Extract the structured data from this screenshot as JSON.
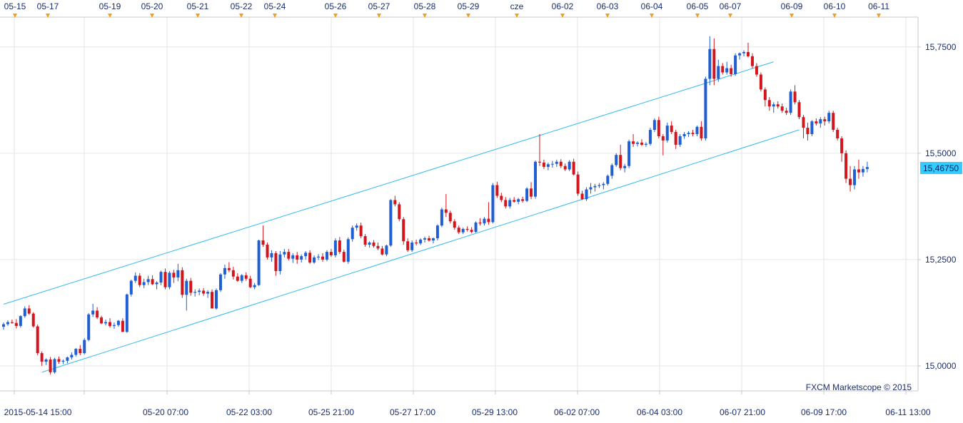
{
  "chart_data": {
    "type": "candlestick",
    "watermark": "FXCM Marketscope © 2015",
    "current_price": "15,46750",
    "top_date_labels": [
      "05-15",
      "05-17",
      "05-19",
      "05-20",
      "05-21",
      "05-22",
      "05-24",
      "05-26",
      "05-27",
      "05-28",
      "05-29",
      "cze",
      "06-02",
      "06-03",
      "06-04",
      "06-05",
      "06-07",
      "06-09",
      "06-10",
      "06-11"
    ],
    "bottom_time_labels": [
      "2015-05-14 15:00",
      "05-20 07:00",
      "05-22 03:00",
      "05-25 21:00",
      "05-27 17:00",
      "05-29 13:00",
      "06-02 07:00",
      "06-04 03:00",
      "06-07 21:00",
      "06-09 17:00",
      "06-11 13:00"
    ],
    "y_ticks": [
      "15,7500",
      "15,5000",
      "15,2500",
      "15,0000"
    ],
    "y_tick_values": [
      15.75,
      15.5,
      15.25,
      15.0
    ],
    "ylim": [
      14.963,
      15.81
    ],
    "colors": {
      "up": "#1f5fd1",
      "down": "#d2161e",
      "channel": "#33bbee",
      "grid": "#e6e6e6",
      "axis": "#c9c9c9",
      "text": "#1a2e6e",
      "marker": "#f0a020",
      "price_box": "#33ccff"
    },
    "channel_lines": [
      {
        "name": "upper",
        "points": [
          [
            0,
            15.145
          ],
          [
            181,
            15.715
          ]
        ]
      },
      {
        "name": "lower",
        "points": [
          [
            9,
            14.985
          ],
          [
            187,
            15.555
          ]
        ]
      }
    ],
    "candles": [
      [
        15.092,
        15.102,
        15.085,
        15.098
      ],
      [
        15.098,
        15.107,
        15.094,
        15.103
      ],
      [
        15.103,
        15.109,
        15.099,
        15.101
      ],
      [
        15.101,
        15.11,
        15.088,
        15.094
      ],
      [
        15.094,
        15.119,
        15.09,
        15.117
      ],
      [
        15.117,
        15.14,
        15.113,
        15.135
      ],
      [
        15.135,
        15.143,
        15.12,
        15.123
      ],
      [
        15.123,
        15.126,
        15.09,
        15.093
      ],
      [
        15.093,
        15.097,
        15.025,
        15.03
      ],
      [
        15.03,
        15.034,
        15.0,
        15.01
      ],
      [
        15.01,
        15.018,
        15.002,
        15.015
      ],
      [
        15.015,
        15.021,
        14.98,
        14.985
      ],
      [
        14.985,
        15.019,
        14.982,
        15.016
      ],
      [
        15.016,
        15.022,
        15.005,
        15.01
      ],
      [
        15.01,
        15.015,
        15.004,
        15.012
      ],
      [
        15.012,
        15.022,
        15.006,
        15.02
      ],
      [
        15.02,
        15.032,
        15.015,
        15.026
      ],
      [
        15.026,
        15.042,
        15.022,
        15.04
      ],
      [
        15.04,
        15.049,
        15.025,
        15.03
      ],
      [
        15.03,
        15.065,
        15.027,
        15.061
      ],
      [
        15.061,
        15.124,
        15.058,
        15.121
      ],
      [
        15.121,
        15.146,
        15.115,
        15.13
      ],
      [
        15.13,
        15.138,
        15.11,
        15.114
      ],
      [
        15.114,
        15.118,
        15.098,
        15.1
      ],
      [
        15.1,
        15.109,
        15.095,
        15.103
      ],
      [
        15.103,
        15.112,
        15.09,
        15.094
      ],
      [
        15.094,
        15.102,
        15.087,
        15.096
      ],
      [
        15.096,
        15.108,
        15.092,
        15.106
      ],
      [
        15.106,
        15.112,
        15.08,
        15.08
      ],
      [
        15.08,
        15.17,
        15.078,
        15.168
      ],
      [
        15.168,
        15.203,
        15.163,
        15.2
      ],
      [
        15.2,
        15.22,
        15.195,
        15.212
      ],
      [
        15.212,
        15.218,
        15.185,
        15.19
      ],
      [
        15.19,
        15.205,
        15.183,
        15.197
      ],
      [
        15.197,
        15.212,
        15.19,
        15.204
      ],
      [
        15.204,
        15.213,
        15.19,
        15.192
      ],
      [
        15.192,
        15.199,
        15.18,
        15.196
      ],
      [
        15.196,
        15.224,
        15.19,
        15.221
      ],
      [
        15.221,
        15.229,
        15.18,
        15.185
      ],
      [
        15.185,
        15.223,
        15.18,
        15.219
      ],
      [
        15.219,
        15.226,
        15.195,
        15.208
      ],
      [
        15.208,
        15.24,
        15.199,
        15.225
      ],
      [
        15.225,
        15.232,
        15.16,
        15.167
      ],
      [
        15.167,
        15.205,
        15.13,
        15.2
      ],
      [
        15.2,
        15.207,
        15.165,
        15.172
      ],
      [
        15.172,
        15.18,
        15.163,
        15.174
      ],
      [
        15.174,
        15.182,
        15.166,
        15.177
      ],
      [
        15.177,
        15.183,
        15.165,
        15.17
      ],
      [
        15.17,
        15.178,
        15.16,
        15.174
      ],
      [
        15.174,
        15.18,
        15.135,
        15.135
      ],
      [
        15.135,
        15.182,
        15.132,
        15.178
      ],
      [
        15.178,
        15.218,
        15.174,
        15.215
      ],
      [
        15.215,
        15.238,
        15.205,
        15.23
      ],
      [
        15.23,
        15.244,
        15.22,
        15.225
      ],
      [
        15.225,
        15.233,
        15.203,
        15.21
      ],
      [
        15.21,
        15.218,
        15.198,
        15.2
      ],
      [
        15.2,
        15.216,
        15.195,
        15.213
      ],
      [
        15.213,
        15.22,
        15.2,
        15.205
      ],
      [
        15.205,
        15.212,
        15.183,
        15.185
      ],
      [
        15.185,
        15.195,
        15.18,
        15.19
      ],
      [
        15.19,
        15.297,
        15.188,
        15.295
      ],
      [
        15.295,
        15.33,
        15.28,
        15.285
      ],
      [
        15.285,
        15.29,
        15.25,
        15.255
      ],
      [
        15.255,
        15.272,
        15.245,
        15.265
      ],
      [
        15.265,
        15.27,
        15.212,
        15.223
      ],
      [
        15.223,
        15.27,
        15.215,
        15.262
      ],
      [
        15.262,
        15.275,
        15.255,
        15.268
      ],
      [
        15.268,
        15.275,
        15.248,
        15.252
      ],
      [
        15.252,
        15.265,
        15.242,
        15.26
      ],
      [
        15.26,
        15.268,
        15.24,
        15.25
      ],
      [
        15.25,
        15.262,
        15.243,
        15.258
      ],
      [
        15.258,
        15.27,
        15.25,
        15.266
      ],
      [
        15.266,
        15.272,
        15.24,
        15.243
      ],
      [
        15.243,
        15.26,
        15.24,
        15.255
      ],
      [
        15.255,
        15.263,
        15.249,
        15.257
      ],
      [
        15.257,
        15.265,
        15.245,
        15.25
      ],
      [
        15.25,
        15.272,
        15.246,
        15.268
      ],
      [
        15.268,
        15.275,
        15.256,
        15.26
      ],
      [
        15.26,
        15.3,
        15.255,
        15.295
      ],
      [
        15.295,
        15.303,
        15.263,
        15.268
      ],
      [
        15.268,
        15.273,
        15.243,
        15.245
      ],
      [
        15.245,
        15.302,
        15.24,
        15.298
      ],
      [
        15.298,
        15.33,
        15.292,
        15.325
      ],
      [
        15.325,
        15.335,
        15.318,
        15.33
      ],
      [
        15.33,
        15.337,
        15.3,
        15.305
      ],
      [
        15.305,
        15.31,
        15.28,
        15.285
      ],
      [
        15.285,
        15.293,
        15.278,
        15.29
      ],
      [
        15.29,
        15.296,
        15.278,
        15.282
      ],
      [
        15.282,
        15.29,
        15.272,
        15.276
      ],
      [
        15.276,
        15.282,
        15.26,
        15.262
      ],
      [
        15.262,
        15.285,
        15.258,
        15.283
      ],
      [
        15.283,
        15.392,
        15.28,
        15.39
      ],
      [
        15.39,
        15.4,
        15.375,
        15.38
      ],
      [
        15.38,
        15.385,
        15.34,
        15.345
      ],
      [
        15.345,
        15.35,
        15.285,
        15.293
      ],
      [
        15.293,
        15.3,
        15.268,
        15.272
      ],
      [
        15.272,
        15.295,
        15.268,
        15.29
      ],
      [
        15.29,
        15.297,
        15.283,
        15.288
      ],
      [
        15.288,
        15.3,
        15.284,
        15.297
      ],
      [
        15.297,
        15.304,
        15.29,
        15.3
      ],
      [
        15.3,
        15.306,
        15.292,
        15.295
      ],
      [
        15.295,
        15.302,
        15.288,
        15.3
      ],
      [
        15.3,
        15.333,
        15.295,
        15.33
      ],
      [
        15.33,
        15.372,
        15.326,
        15.368
      ],
      [
        15.368,
        15.404,
        15.35,
        15.36
      ],
      [
        15.36,
        15.365,
        15.335,
        15.34
      ],
      [
        15.34,
        15.345,
        15.32,
        15.325
      ],
      [
        15.325,
        15.33,
        15.31,
        15.314
      ],
      [
        15.314,
        15.325,
        15.31,
        15.322
      ],
      [
        15.322,
        15.328,
        15.316,
        15.32
      ],
      [
        15.32,
        15.326,
        15.312,
        15.315
      ],
      [
        15.315,
        15.34,
        15.313,
        15.337
      ],
      [
        15.337,
        15.347,
        15.33,
        15.335
      ],
      [
        15.335,
        15.35,
        15.33,
        15.346
      ],
      [
        15.346,
        15.385,
        15.332,
        15.338
      ],
      [
        15.338,
        15.43,
        15.335,
        15.425
      ],
      [
        15.425,
        15.433,
        15.395,
        15.4
      ],
      [
        15.4,
        15.407,
        15.385,
        15.39
      ],
      [
        15.39,
        15.397,
        15.37,
        15.375
      ],
      [
        15.375,
        15.395,
        15.37,
        15.39
      ],
      [
        15.39,
        15.397,
        15.384,
        15.386
      ],
      [
        15.386,
        15.395,
        15.38,
        15.392
      ],
      [
        15.392,
        15.398,
        15.384,
        15.388
      ],
      [
        15.388,
        15.42,
        15.385,
        15.417
      ],
      [
        15.417,
        15.432,
        15.392,
        15.398
      ],
      [
        15.398,
        15.483,
        15.393,
        15.48
      ],
      [
        15.48,
        15.545,
        15.47,
        15.478
      ],
      [
        15.478,
        15.485,
        15.463,
        15.468
      ],
      [
        15.468,
        15.478,
        15.46,
        15.474
      ],
      [
        15.474,
        15.482,
        15.466,
        15.475
      ],
      [
        15.475,
        15.485,
        15.468,
        15.48
      ],
      [
        15.48,
        15.486,
        15.465,
        15.47
      ],
      [
        15.47,
        15.476,
        15.458,
        15.462
      ],
      [
        15.462,
        15.484,
        15.458,
        15.48
      ],
      [
        15.48,
        15.487,
        15.448,
        15.45
      ],
      [
        15.45,
        15.457,
        15.4,
        15.405
      ],
      [
        15.405,
        15.412,
        15.39,
        15.392
      ],
      [
        15.392,
        15.42,
        15.388,
        15.415
      ],
      [
        15.415,
        15.43,
        15.405,
        15.42
      ],
      [
        15.42,
        15.428,
        15.41,
        15.423
      ],
      [
        15.423,
        15.43,
        15.418,
        15.425
      ],
      [
        15.425,
        15.432,
        15.415,
        15.428
      ],
      [
        15.428,
        15.45,
        15.424,
        15.447
      ],
      [
        15.447,
        15.476,
        15.44,
        15.472
      ],
      [
        15.472,
        15.5,
        15.468,
        15.496
      ],
      [
        15.496,
        15.52,
        15.46,
        15.465
      ],
      [
        15.465,
        15.475,
        15.455,
        15.47
      ],
      [
        15.47,
        15.532,
        15.465,
        15.528
      ],
      [
        15.528,
        15.545,
        15.515,
        15.522
      ],
      [
        15.522,
        15.528,
        15.516,
        15.525
      ],
      [
        15.525,
        15.533,
        15.517,
        15.52
      ],
      [
        15.52,
        15.526,
        15.515,
        15.522
      ],
      [
        15.522,
        15.56,
        15.518,
        15.555
      ],
      [
        15.555,
        15.582,
        15.55,
        15.578
      ],
      [
        15.578,
        15.586,
        15.535,
        15.54
      ],
      [
        15.54,
        15.545,
        15.495,
        15.53
      ],
      [
        15.53,
        15.572,
        15.525,
        15.565
      ],
      [
        15.565,
        15.575,
        15.545,
        15.55
      ],
      [
        15.55,
        15.555,
        15.51,
        15.52
      ],
      [
        15.52,
        15.545,
        15.515,
        15.54
      ],
      [
        15.54,
        15.55,
        15.534,
        15.545
      ],
      [
        15.545,
        15.552,
        15.538,
        15.548
      ],
      [
        15.548,
        15.555,
        15.54,
        15.545
      ],
      [
        15.545,
        15.565,
        15.54,
        15.562
      ],
      [
        15.562,
        15.575,
        15.53,
        15.535
      ],
      [
        15.535,
        15.68,
        15.53,
        15.675
      ],
      [
        15.675,
        15.775,
        15.66,
        15.745
      ],
      [
        15.745,
        15.77,
        15.66,
        15.675
      ],
      [
        15.675,
        15.72,
        15.668,
        15.705
      ],
      [
        15.705,
        15.712,
        15.685,
        15.69
      ],
      [
        15.69,
        15.715,
        15.685,
        15.7
      ],
      [
        15.7,
        15.708,
        15.68,
        15.686
      ],
      [
        15.686,
        15.735,
        15.682,
        15.73
      ],
      [
        15.73,
        15.737,
        15.72,
        15.735
      ],
      [
        15.735,
        15.742,
        15.728,
        15.738
      ],
      [
        15.738,
        15.76,
        15.725,
        15.728
      ],
      [
        15.728,
        15.735,
        15.7,
        15.705
      ],
      [
        15.705,
        15.712,
        15.68,
        15.685
      ],
      [
        15.685,
        15.69,
        15.645,
        15.65
      ],
      [
        15.65,
        15.655,
        15.61,
        15.625
      ],
      [
        15.625,
        15.632,
        15.6,
        15.61
      ],
      [
        15.61,
        15.62,
        15.595,
        15.615
      ],
      [
        15.615,
        15.622,
        15.605,
        15.61
      ],
      [
        15.61,
        15.617,
        15.595,
        15.6
      ],
      [
        15.6,
        15.607,
        15.59,
        15.595
      ],
      [
        15.595,
        15.65,
        15.59,
        15.645
      ],
      [
        15.645,
        15.66,
        15.615,
        15.62
      ],
      [
        15.62,
        15.625,
        15.58,
        15.585
      ],
      [
        15.585,
        15.59,
        15.535,
        15.56
      ],
      [
        15.56,
        15.572,
        15.53,
        15.545
      ],
      [
        15.545,
        15.578,
        15.54,
        15.575
      ],
      [
        15.575,
        15.582,
        15.565,
        15.57
      ],
      [
        15.57,
        15.585,
        15.56,
        15.58
      ],
      [
        15.58,
        15.586,
        15.565,
        15.575
      ],
      [
        15.575,
        15.6,
        15.57,
        15.595
      ],
      [
        15.595,
        15.6,
        15.55,
        15.555
      ],
      [
        15.555,
        15.56,
        15.53,
        15.535
      ],
      [
        15.535,
        15.54,
        15.48,
        15.5
      ],
      [
        15.5,
        15.507,
        15.43,
        15.44
      ],
      [
        15.44,
        15.47,
        15.41,
        15.425
      ],
      [
        15.425,
        15.47,
        15.415,
        15.462
      ],
      [
        15.462,
        15.485,
        15.44,
        15.455
      ],
      [
        15.455,
        15.47,
        15.445,
        15.463
      ],
      [
        15.463,
        15.48,
        15.455,
        15.4675
      ]
    ]
  }
}
